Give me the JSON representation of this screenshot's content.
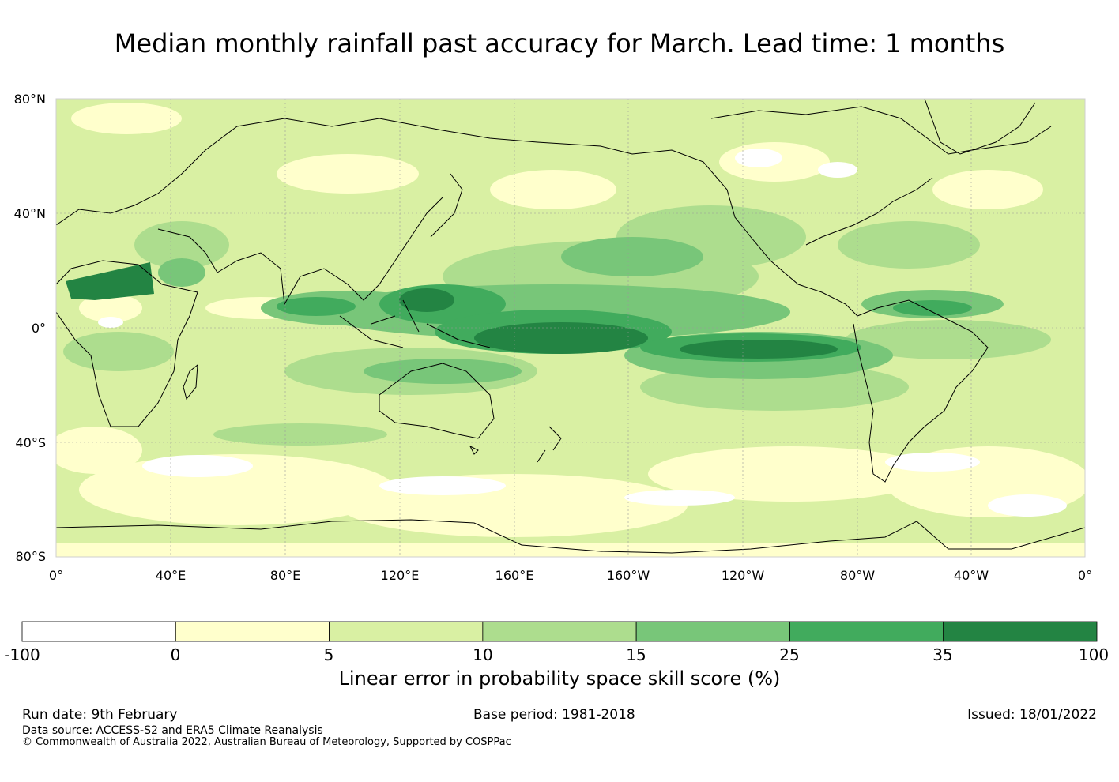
{
  "title": "Median monthly rainfall past accuracy for March. Lead time: 1 months",
  "axes": {
    "lat_labels": [
      "80°N",
      "40°N",
      "0°",
      "40°S",
      "80°S"
    ],
    "lon_labels": [
      "0°",
      "40°E",
      "80°E",
      "120°E",
      "160°E",
      "160°W",
      "120°W",
      "80°W",
      "40°W",
      "0°"
    ]
  },
  "colorbar": {
    "title": "Linear error in probability space skill score (%)",
    "ticks": [
      "-100",
      "0",
      "5",
      "10",
      "15",
      "25",
      "35",
      "100"
    ],
    "colors": [
      "#ffffff",
      "#ffffcc",
      "#d9f0a3",
      "#addd8e",
      "#78c679",
      "#41ab5d",
      "#238443"
    ]
  },
  "footer": {
    "run_date": "Run date: 9th February",
    "base_period": "Base period: 1981-2018",
    "issued": "Issued: 18/01/2022",
    "data_source": "Data source: ACCESS-S2 and ERA5 Climate Reanalysis",
    "copyright": "© Commonwealth of Australia 2022, Australian Bureau of Meteorology, Supported by COSPPac"
  }
}
